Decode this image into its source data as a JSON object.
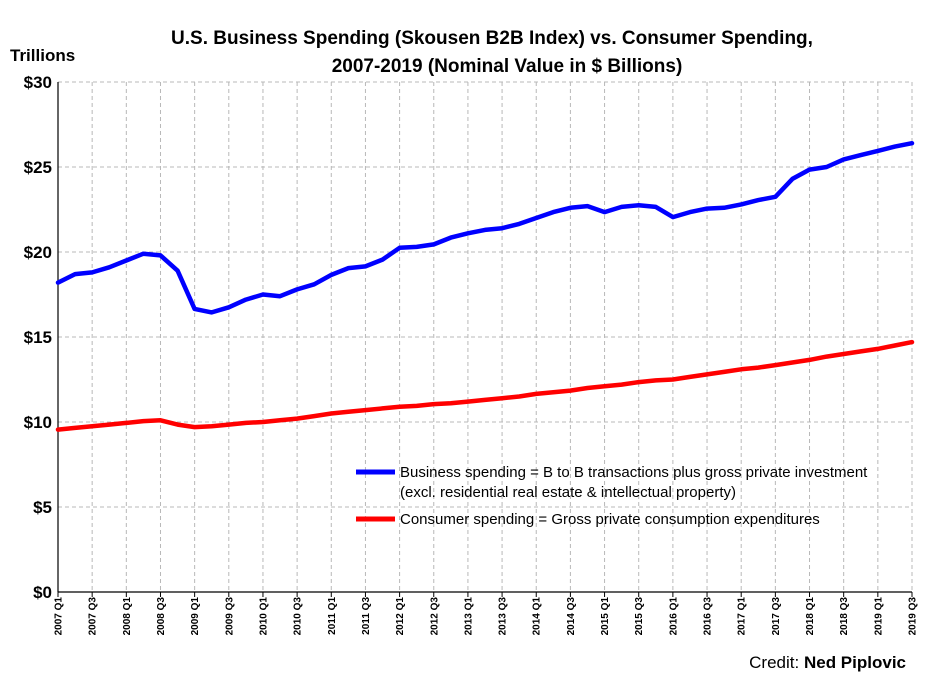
{
  "chart_data": {
    "type": "line",
    "title_line1": "U.S. Business Spending (Skousen B2B Index) vs. Consumer Spending,",
    "title_line2": "2007-2019  (Nominal Value in $ Billions)",
    "ylabel": "Trillions",
    "ylim": [
      0,
      30
    ],
    "yticks": [
      "$0",
      "$5",
      "$10",
      "$15",
      "$20",
      "$25",
      "$30"
    ],
    "grid": true,
    "x": [
      "2007 Q1",
      "2007 Q2",
      "2007 Q3",
      "2007 Q4",
      "2008 Q1",
      "2008 Q2",
      "2008 Q3",
      "2008 Q4",
      "2009 Q1",
      "2009 Q2",
      "2009 Q3",
      "2009 Q4",
      "2010 Q1",
      "2010 Q2",
      "2010 Q3",
      "2010 Q4",
      "2011 Q1",
      "2011 Q2",
      "2011 Q3",
      "2011 Q4",
      "2012 Q1",
      "2012 Q2",
      "2012 Q3",
      "2012 Q4",
      "2013 Q1",
      "2013 Q2",
      "2013 Q3",
      "2013 Q4",
      "2014 Q1",
      "2014 Q2",
      "2014 Q3",
      "2014 Q4",
      "2015 Q1",
      "2015 Q2",
      "2015 Q3",
      "2015 Q4",
      "2016 Q1",
      "2016 Q2",
      "2016 Q3",
      "2016 Q4",
      "2017 Q1",
      "2017 Q2",
      "2017 Q3",
      "2017 Q4",
      "2018 Q1",
      "2018 Q2",
      "2018 Q3",
      "2018 Q4",
      "2019 Q1",
      "2019 Q2",
      "2019 Q3"
    ],
    "xtick_labels": [
      "2007 Q1",
      "2007 Q3",
      "2008 Q1",
      "2008 Q3",
      "2009 Q1",
      "2009 Q3",
      "2010 Q1",
      "2010 Q3",
      "2011 Q1",
      "2011 Q3",
      "2012 Q1",
      "2012 Q3",
      "2013 Q1",
      "2013 Q3",
      "2014 Q1",
      "2014 Q3",
      "2015 Q1",
      "2015 Q3",
      "2016 Q1",
      "2016 Q3",
      "2017 Q1",
      "2017 Q3",
      "2018 Q1",
      "2018 Q3",
      "2019 Q1",
      "2019 Q3"
    ],
    "series": [
      {
        "name": "Business spending = B to B transactions plus gross private investment",
        "name_line2": "(excl. residential real estate & intellectual property)",
        "color": "#0000ff",
        "values": [
          18.2,
          18.7,
          18.8,
          19.1,
          19.5,
          19.9,
          19.8,
          18.9,
          16.65,
          16.45,
          16.75,
          17.2,
          17.5,
          17.4,
          17.8,
          18.1,
          18.65,
          19.05,
          19.15,
          19.55,
          20.25,
          20.3,
          20.45,
          20.85,
          21.1,
          21.3,
          21.4,
          21.65,
          22.0,
          22.35,
          22.6,
          22.7,
          22.35,
          22.65,
          22.75,
          22.65,
          22.05,
          22.35,
          22.55,
          22.6,
          22.8,
          23.05,
          23.25,
          24.3,
          24.85,
          25.0,
          25.45,
          25.7,
          25.95,
          26.2,
          26.4
        ]
      },
      {
        "name": "Consumer spending = Gross private consumption expenditures",
        "color": "#ff0000",
        "values": [
          9.55,
          9.65,
          9.75,
          9.85,
          9.95,
          10.05,
          10.1,
          9.85,
          9.7,
          9.75,
          9.85,
          9.95,
          10.0,
          10.1,
          10.2,
          10.35,
          10.5,
          10.6,
          10.7,
          10.8,
          10.9,
          10.95,
          11.05,
          11.1,
          11.2,
          11.3,
          11.4,
          11.5,
          11.65,
          11.75,
          11.85,
          12.0,
          12.1,
          12.2,
          12.35,
          12.45,
          12.5,
          12.65,
          12.8,
          12.95,
          13.1,
          13.2,
          13.35,
          13.5,
          13.65,
          13.85,
          14.0,
          14.15,
          14.3,
          14.5,
          14.7
        ]
      }
    ],
    "legend_position": "bottom-right"
  },
  "credit": {
    "label": "Credit:",
    "name": "Ned Piplovic"
  }
}
